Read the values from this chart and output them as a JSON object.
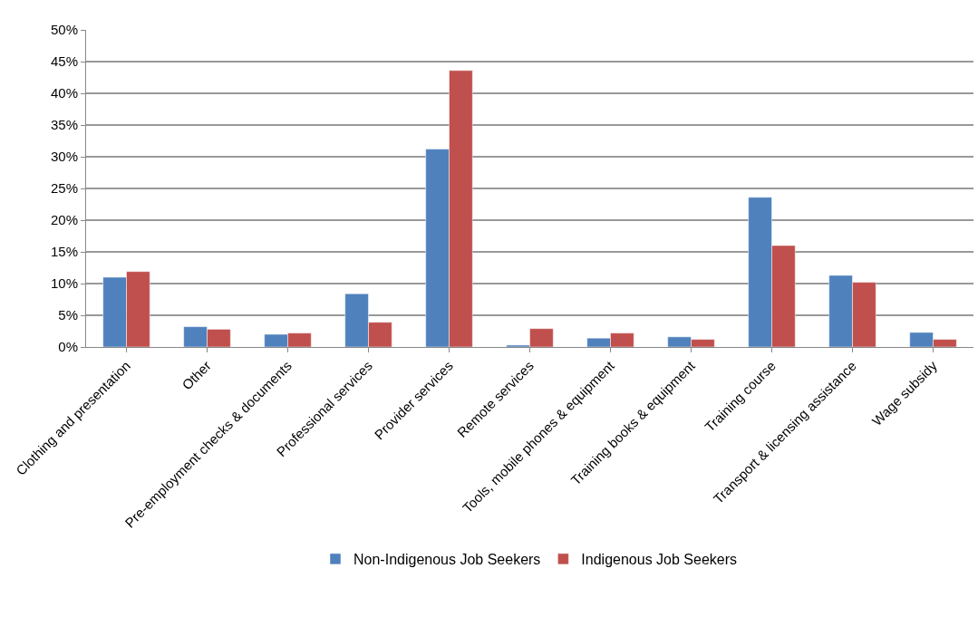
{
  "chart_data": {
    "type": "bar",
    "categories": [
      "Clothing and presentation",
      "Other",
      "Pre-employment checks & documents",
      "Professional services",
      "Provider services",
      "Remote services",
      "Tools, mobile phones & equipment",
      "Training books & equipment",
      "Training course",
      "Transport & licensing assistance",
      "Wage subsidy"
    ],
    "series": [
      {
        "name": "Non-Indigenous Job Seekers",
        "color": "#4f81bd",
        "values": [
          11.0,
          3.2,
          2.0,
          8.4,
          31.2,
          0.3,
          1.4,
          1.6,
          23.6,
          11.3,
          2.3
        ]
      },
      {
        "name": "Indigenous Job Seekers",
        "color": "#c0504d",
        "values": [
          11.9,
          2.8,
          2.2,
          3.9,
          43.6,
          2.9,
          2.2,
          1.2,
          16.0,
          10.2,
          1.2
        ]
      }
    ],
    "ylim": [
      0,
      50
    ],
    "yticks": [
      {
        "value": 0,
        "label": "0%"
      },
      {
        "value": 5,
        "label": "5%"
      },
      {
        "value": 10,
        "label": "10%"
      },
      {
        "value": 15,
        "label": "15%"
      },
      {
        "value": 20,
        "label": "20%"
      },
      {
        "value": 25,
        "label": "25%"
      },
      {
        "value": 30,
        "label": "30%"
      },
      {
        "value": 35,
        "label": "35%"
      },
      {
        "value": 40,
        "label": "40%"
      },
      {
        "value": 45,
        "label": "45%"
      },
      {
        "value": 50,
        "label": "50%"
      }
    ],
    "grid": "y",
    "legend": "bottom"
  }
}
